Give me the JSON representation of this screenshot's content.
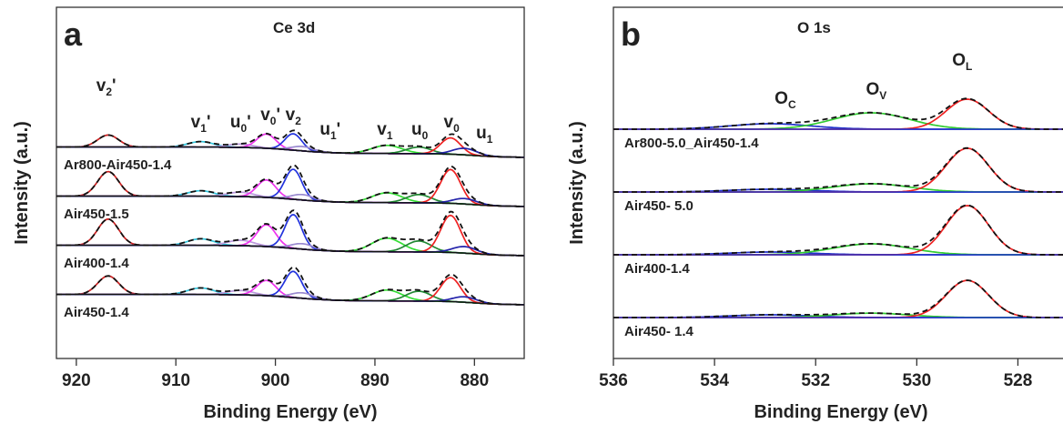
{
  "chart_data": [
    {
      "type": "line",
      "panel": "a",
      "title": "Ce 3d",
      "xlabel": "Binding Energy (eV)",
      "ylabel": "Intensity (a.u.)",
      "xlim": [
        922,
        875
      ],
      "x_reversed": true,
      "x_ticks": [
        920,
        910,
        900,
        890,
        880
      ],
      "offset_stacked": true,
      "peak_labels": [
        {
          "base": "v",
          "sub": "2",
          "prime": "'",
          "x": 917
        },
        {
          "base": "v",
          "sub": "1",
          "prime": "'",
          "x": 907.5
        },
        {
          "base": "u",
          "sub": "0",
          "prime": "'",
          "x": 903.5
        },
        {
          "base": "v",
          "sub": "0",
          "prime": "'",
          "x": 900.5
        },
        {
          "base": "v",
          "sub": "2",
          "prime": "",
          "x": 898.2
        },
        {
          "base": "u",
          "sub": "1",
          "prime": "'",
          "x": 894.5
        },
        {
          "base": "v",
          "sub": "1",
          "prime": "",
          "x": 889
        },
        {
          "base": "u",
          "sub": "0",
          "prime": "",
          "x": 885.5
        },
        {
          "base": "v",
          "sub": "0",
          "prime": "",
          "x": 882.3
        },
        {
          "base": "u",
          "sub": "1",
          "prime": "",
          "x": 879
        }
      ],
      "components": [
        {
          "name": "v2'",
          "center": 916.8,
          "width": 1.05,
          "color": "#cc2222"
        },
        {
          "name": "v1'",
          "center": 907.5,
          "width": 1.3,
          "color": "#33c5dd"
        },
        {
          "name": "u0'",
          "center": 903.5,
          "width": 1.3,
          "color": "#bb99dd"
        },
        {
          "name": "v0'",
          "center": 900.9,
          "width": 0.95,
          "color": "#ee33ee"
        },
        {
          "name": "v2",
          "center": 898.2,
          "width": 0.85,
          "color": "#2233dd"
        },
        {
          "name": "u1'",
          "center": 897.3,
          "width": 1.1,
          "color": "#9a8ad0"
        },
        {
          "name": "v1",
          "center": 888.8,
          "width": 1.5,
          "color": "#33dd33"
        },
        {
          "name": "u0",
          "center": 885.6,
          "width": 1.25,
          "color": "#228833"
        },
        {
          "name": "v0",
          "center": 882.4,
          "width": 1.0,
          "color": "#ee2222"
        },
        {
          "name": "u1",
          "center": 881.0,
          "width": 1.2,
          "color": "#2222aa"
        }
      ],
      "series": [
        {
          "name": "Ar800-Air450-1.4",
          "offset": 3,
          "amplitudes": [
            0.22,
            0.1,
            0.06,
            0.26,
            0.3,
            0.08,
            0.15,
            0.12,
            0.3,
            0.12
          ]
        },
        {
          "name": "Air450-1.5",
          "offset": 2,
          "amplitudes": [
            0.45,
            0.1,
            0.08,
            0.32,
            0.55,
            0.1,
            0.18,
            0.15,
            0.62,
            0.1
          ]
        },
        {
          "name": "Air400-1.4",
          "offset": 1,
          "amplitudes": [
            0.48,
            0.12,
            0.1,
            0.4,
            0.62,
            0.1,
            0.25,
            0.2,
            0.68,
            0.12
          ]
        },
        {
          "name": "Air450-1.4",
          "offset": 0,
          "amplitudes": [
            0.34,
            0.12,
            0.08,
            0.28,
            0.48,
            0.1,
            0.2,
            0.18,
            0.44,
            0.1
          ]
        }
      ],
      "legend": "labels placed beside curves"
    },
    {
      "type": "line",
      "panel": "b",
      "title": "O 1s",
      "xlabel": "Binding Energy (eV)",
      "ylabel": "Intensity (a.u.)",
      "xlim": [
        536,
        527
      ],
      "x_reversed": true,
      "x_ticks": [
        536,
        534,
        532,
        530,
        528
      ],
      "offset_stacked": true,
      "peak_labels": [
        {
          "base": "O",
          "sub": "C",
          "x": 532.6
        },
        {
          "base": "O",
          "sub": "V",
          "x": 530.8
        },
        {
          "base": "O",
          "sub": "L",
          "x": 529.1
        }
      ],
      "components": [
        {
          "name": "OC",
          "center": 532.9,
          "width": 0.8,
          "color": "#2233cc"
        },
        {
          "name": "OV",
          "center": 530.9,
          "width": 0.75,
          "color": "#33cc33"
        },
        {
          "name": "OL",
          "center": 529.0,
          "width": 0.42,
          "color": "#ee2222"
        }
      ],
      "series": [
        {
          "name": "Ar800-5.0_Air450-1.4",
          "offset": 3,
          "amplitudes": [
            0.1,
            0.3,
            0.55
          ]
        },
        {
          "name": "Air450- 5.0",
          "offset": 2,
          "amplitudes": [
            0.05,
            0.15,
            0.8
          ]
        },
        {
          "name": "Air400-1.4",
          "offset": 1,
          "amplitudes": [
            0.05,
            0.2,
            0.9
          ]
        },
        {
          "name": "Air450- 1.4",
          "offset": 0,
          "amplitudes": [
            0.05,
            0.08,
            0.68
          ]
        }
      ],
      "legend": "labels placed beside curves"
    }
  ]
}
